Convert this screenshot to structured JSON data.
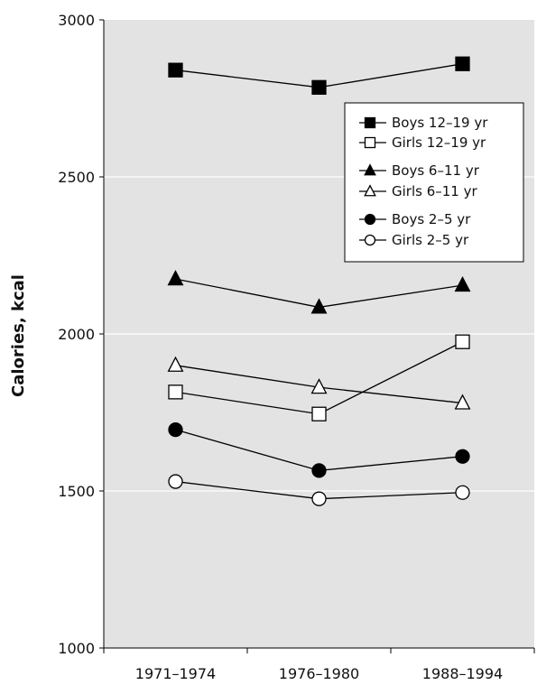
{
  "chart_data": {
    "type": "line",
    "title": "",
    "xlabel": "",
    "ylabel": "Calories, kcal",
    "categories": [
      "1971–1974",
      "1976–1980",
      "1988–1994"
    ],
    "ylim": [
      1000,
      3000
    ],
    "yticks": [
      1000,
      1500,
      2000,
      2500,
      3000
    ],
    "grid": true,
    "background": "#e3e3e3",
    "legend_position": "top-right",
    "series": [
      {
        "name": "Boys 12–19 yr",
        "marker": "square",
        "filled": true,
        "values": [
          2840,
          2785,
          2860
        ]
      },
      {
        "name": "Girls 12–19 yr",
        "marker": "square",
        "filled": false,
        "values": [
          1815,
          1745,
          1975
        ]
      },
      {
        "name": "Boys 6–11 yr",
        "marker": "triangle",
        "filled": true,
        "values": [
          2175,
          2085,
          2155
        ]
      },
      {
        "name": "Girls 6–11 yr",
        "marker": "triangle",
        "filled": false,
        "values": [
          1900,
          1830,
          1780
        ]
      },
      {
        "name": "Boys 2–5 yr",
        "marker": "circle",
        "filled": true,
        "values": [
          1695,
          1565,
          1610
        ]
      },
      {
        "name": "Girls 2–5 yr",
        "marker": "circle",
        "filled": false,
        "values": [
          1530,
          1475,
          1495
        ]
      }
    ]
  }
}
